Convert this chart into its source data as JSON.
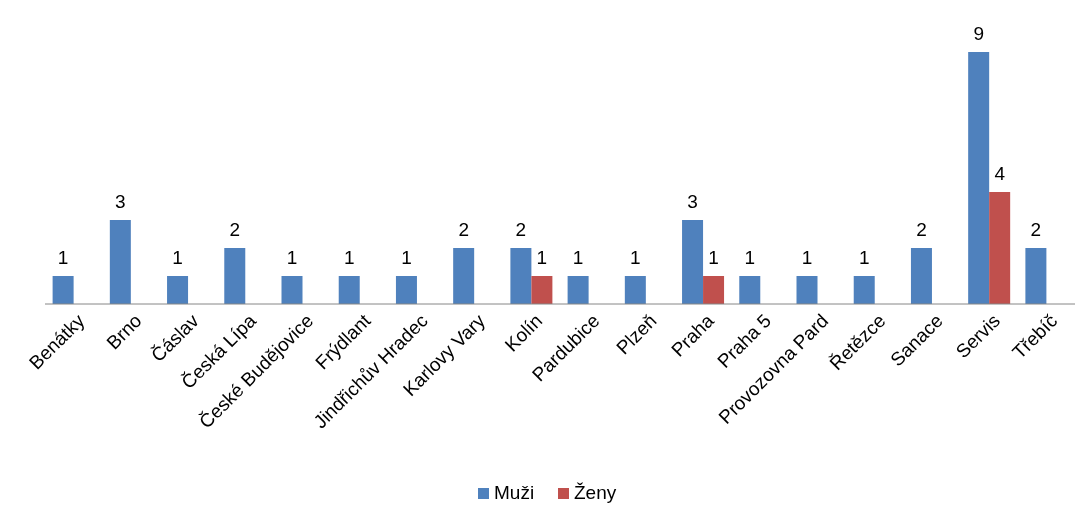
{
  "chart_data": {
    "type": "bar",
    "categories": [
      "Benátky",
      "Brno",
      "Čáslav",
      "Česká Lípa",
      "České Budějovice",
      "Frýdlant",
      "Jindřichův Hradec",
      "Karlovy Vary",
      "Kolín",
      "Pardubice",
      "Plzeň",
      "Praha",
      "Praha 5",
      "Provozovna Pard",
      "Řetězce",
      "Sanace",
      "Servis",
      "Třebíč"
    ],
    "series": [
      {
        "name": "Muži",
        "color": "#4f81bd",
        "values": [
          1,
          3,
          1,
          2,
          1,
          1,
          1,
          2,
          2,
          1,
          1,
          3,
          1,
          1,
          1,
          2,
          9,
          2
        ]
      },
      {
        "name": "Ženy",
        "color": "#c0504d",
        "values": [
          null,
          null,
          null,
          null,
          null,
          null,
          null,
          null,
          1,
          null,
          null,
          1,
          null,
          null,
          null,
          null,
          4,
          null
        ]
      }
    ],
    "data_labels": true,
    "legend": "bottom"
  }
}
